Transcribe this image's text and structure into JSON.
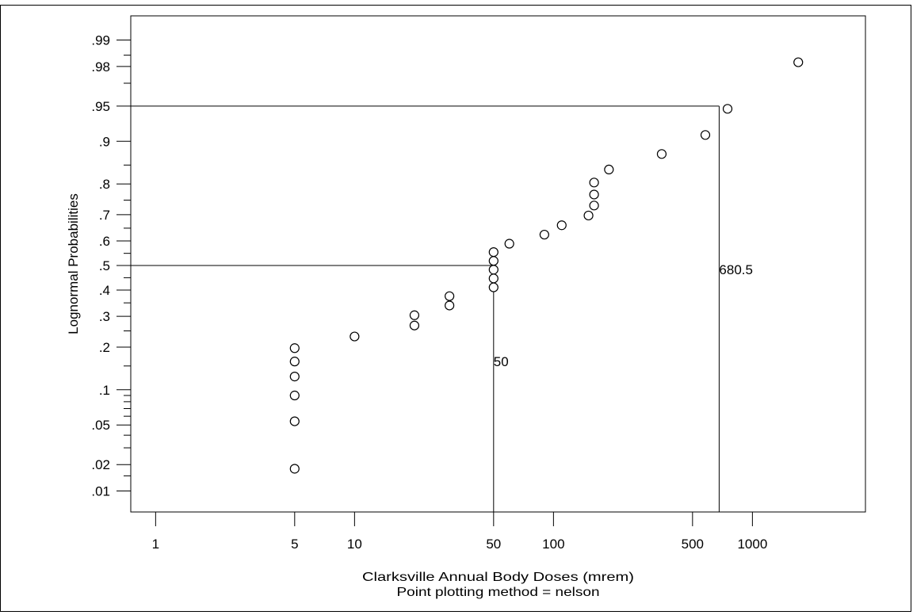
{
  "chart_data": {
    "type": "scatter",
    "xlabel": "Clarksville Annual Body Doses (mrem)",
    "subtitle": "Point plotting method = nelson",
    "ylabel": "Lognormal Probabilities",
    "x_scale": "log",
    "y_scale": "normal-probability",
    "xlim": [
      0.75,
      3700
    ],
    "ylim": [
      0.0055,
      0.995
    ],
    "x_ticks": [
      {
        "value": 1,
        "label": "1"
      },
      {
        "value": 5,
        "label": "5"
      },
      {
        "value": 10,
        "label": "10"
      },
      {
        "value": 50,
        "label": "50"
      },
      {
        "value": 100,
        "label": "100"
      },
      {
        "value": 500,
        "label": "500"
      },
      {
        "value": 1000,
        "label": "1000"
      }
    ],
    "y_ticks": [
      {
        "value": 0.01,
        "label": ".01"
      },
      {
        "value": 0.02,
        "label": ".02"
      },
      {
        "value": 0.05,
        "label": ".05"
      },
      {
        "value": 0.1,
        "label": ".1"
      },
      {
        "value": 0.2,
        "label": ".2"
      },
      {
        "value": 0.3,
        "label": ".3"
      },
      {
        "value": 0.4,
        "label": ".4"
      },
      {
        "value": 0.5,
        "label": ".5"
      },
      {
        "value": 0.6,
        "label": ".6"
      },
      {
        "value": 0.7,
        "label": ".7"
      },
      {
        "value": 0.8,
        "label": ".8"
      },
      {
        "value": 0.9,
        "label": ".9"
      },
      {
        "value": 0.95,
        "label": ".95"
      },
      {
        "value": 0.98,
        "label": ".98"
      },
      {
        "value": 0.99,
        "label": ".99"
      }
    ],
    "y_minor_ticks": [
      0.015,
      0.03,
      0.04,
      0.06,
      0.07,
      0.08,
      0.09,
      0.15,
      0.25,
      0.35,
      0.45,
      0.55,
      0.65,
      0.75,
      0.85,
      0.97,
      0.985
    ],
    "points": [
      {
        "x": 5,
        "y": 0.018
      },
      {
        "x": 5,
        "y": 0.054
      },
      {
        "x": 5,
        "y": 0.09
      },
      {
        "x": 5,
        "y": 0.126
      },
      {
        "x": 5,
        "y": 0.161
      },
      {
        "x": 5,
        "y": 0.197
      },
      {
        "x": 10,
        "y": 0.232
      },
      {
        "x": 20,
        "y": 0.268
      },
      {
        "x": 20,
        "y": 0.304
      },
      {
        "x": 30,
        "y": 0.34
      },
      {
        "x": 30,
        "y": 0.376
      },
      {
        "x": 50,
        "y": 0.411
      },
      {
        "x": 50,
        "y": 0.447
      },
      {
        "x": 50,
        "y": 0.483
      },
      {
        "x": 50,
        "y": 0.519
      },
      {
        "x": 50,
        "y": 0.555
      },
      {
        "x": 60,
        "y": 0.589
      },
      {
        "x": 90,
        "y": 0.625
      },
      {
        "x": 110,
        "y": 0.661
      },
      {
        "x": 150,
        "y": 0.697
      },
      {
        "x": 160,
        "y": 0.732
      },
      {
        "x": 160,
        "y": 0.768
      },
      {
        "x": 160,
        "y": 0.804
      },
      {
        "x": 190,
        "y": 0.839
      },
      {
        "x": 350,
        "y": 0.875
      },
      {
        "x": 580,
        "y": 0.911
      },
      {
        "x": 750,
        "y": 0.947
      },
      {
        "x": 1700,
        "y": 0.982
      }
    ],
    "reference_lines": [
      {
        "prob": 0.5,
        "x": 50,
        "label": "50"
      },
      {
        "prob": 0.95,
        "x": 680.5,
        "label": "680.5"
      }
    ]
  }
}
